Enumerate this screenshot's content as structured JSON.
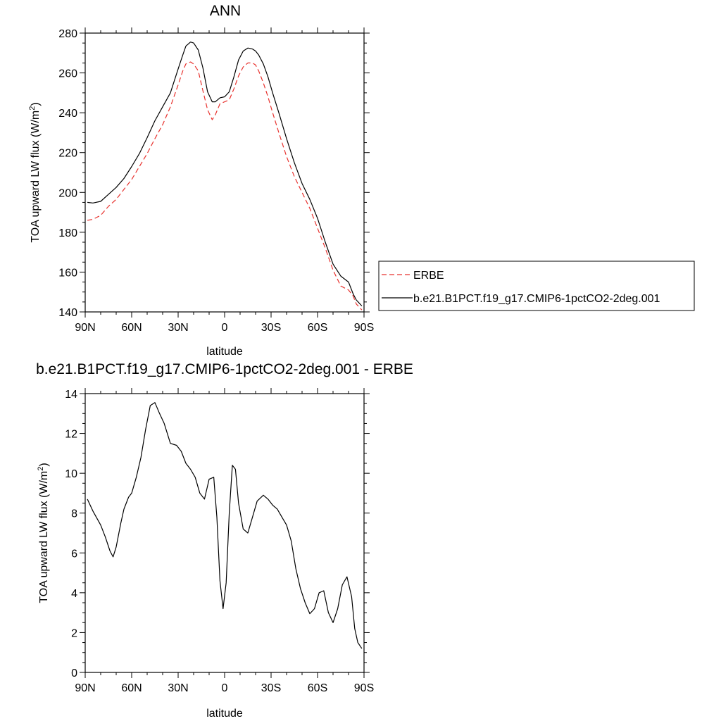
{
  "chart_data": [
    {
      "type": "line",
      "title": "ANN",
      "xlabel": "latitude",
      "ylabel": "TOA upward LW flux (W/m",
      "ylabel_sup": "2",
      "ylabel_close": ")",
      "xlim": [
        90,
        -90
      ],
      "ylim": [
        140,
        280
      ],
      "xticks": [
        90,
        60,
        30,
        0,
        -30,
        -60,
        -90
      ],
      "xtick_labels": [
        "90N",
        "60N",
        "30N",
        "0",
        "30S",
        "60S",
        "90S"
      ],
      "yticks": [
        140,
        160,
        180,
        200,
        220,
        240,
        260,
        280
      ],
      "ytick_labels": [
        "140",
        "160",
        "180",
        "200",
        "220",
        "240",
        "260",
        "280"
      ],
      "legend": [
        "ERBE",
        "b.e21.B1PCT.f19_g17.CMIP6-1pctCO2-2deg.001"
      ],
      "series": [
        {
          "name": "ERBE",
          "color": "#e8322e",
          "dash": true,
          "x": [
            88.6,
            85,
            80,
            75,
            70,
            65,
            60,
            55,
            50,
            45,
            40,
            35,
            30,
            27,
            25,
            22,
            20,
            17,
            14,
            11,
            8,
            6,
            3,
            0,
            -3,
            -6,
            -9,
            -12,
            -15,
            -18,
            -20,
            -22,
            -25,
            -28,
            -31,
            -35,
            -40,
            -45,
            -50,
            -55,
            -60,
            -65,
            -70,
            -75,
            -80,
            -83,
            -85,
            -88.6
          ],
          "values": [
            186,
            186.5,
            188.5,
            193,
            196.5,
            201.5,
            206.5,
            213,
            219.5,
            227,
            234,
            243,
            254,
            261,
            264.5,
            265.5,
            264.5,
            261,
            251,
            241.5,
            236.5,
            239,
            244.5,
            245.5,
            246.5,
            252,
            258.5,
            263,
            265,
            265,
            264,
            261,
            255,
            248,
            240,
            230,
            218,
            208,
            200,
            192,
            182,
            172,
            161,
            153,
            151,
            148,
            144,
            141
          ]
        },
        {
          "name": "b.e21.B1PCT.f19_g17.CMIP6-1pctCO2-2deg.001",
          "color": "#000000",
          "dash": false,
          "x": [
            88.6,
            85,
            80,
            75,
            70,
            65,
            60,
            55,
            50,
            45,
            40,
            35,
            30,
            27,
            25,
            22,
            20,
            17,
            14,
            11,
            8,
            6,
            3,
            0,
            -3,
            -6,
            -9,
            -12,
            -15,
            -18,
            -20,
            -22,
            -25,
            -28,
            -31,
            -35,
            -40,
            -45,
            -50,
            -55,
            -60,
            -65,
            -70,
            -75,
            -80,
            -83,
            -85,
            -88.6
          ],
          "values": [
            195,
            194.7,
            195.5,
            199,
            202.5,
            207,
            213,
            219.5,
            227.5,
            236,
            243,
            250,
            262,
            269,
            273.5,
            275.5,
            275,
            271.5,
            262.5,
            250.5,
            245.5,
            245.5,
            247.5,
            248,
            250.5,
            258,
            266.5,
            271,
            272.5,
            272,
            271,
            269,
            264.5,
            258,
            250,
            240,
            227,
            215,
            204.5,
            196.5,
            187,
            175,
            164,
            158,
            155,
            149,
            146,
            143
          ]
        }
      ]
    },
    {
      "type": "line",
      "title": "b.e21.B1PCT.f19_g17.CMIP6-1pctCO2-2deg.001 - ERBE",
      "xlabel": "latitude",
      "ylabel": "TOA upward LW flux (W/m",
      "ylabel_sup": "2",
      "ylabel_close": ")",
      "xlim": [
        90,
        -90
      ],
      "ylim": [
        0,
        14
      ],
      "xticks": [
        90,
        60,
        30,
        0,
        -30,
        -60,
        -90
      ],
      "xtick_labels": [
        "90N",
        "60N",
        "30N",
        "0",
        "30S",
        "60S",
        "90S"
      ],
      "yticks": [
        0,
        2,
        4,
        6,
        8,
        10,
        12,
        14
      ],
      "ytick_labels": [
        "0",
        "2",
        "4",
        "6",
        "8",
        "10",
        "12",
        "14"
      ],
      "series": [
        {
          "name": "b.e21.B1PCT.f19_g17.CMIP6-1pctCO2-2deg.001 - ERBE",
          "color": "#000000",
          "dash": false,
          "x": [
            88.6,
            85,
            80,
            77,
            74,
            72,
            70,
            67,
            65,
            62,
            60,
            57,
            54,
            51,
            48,
            45,
            42,
            39,
            35,
            31,
            28,
            25,
            22,
            19,
            16,
            13,
            10,
            7,
            5,
            3,
            1,
            -1,
            -3,
            -5,
            -7,
            -9,
            -12,
            -15,
            -18,
            -21,
            -25,
            -28,
            -31,
            -34,
            -37,
            -40,
            -43,
            -46,
            -49,
            -52,
            -55,
            -58,
            -61,
            -64,
            -67,
            -70,
            -73,
            -76,
            -79,
            -82,
            -84,
            -86,
            -88.6
          ],
          "values": [
            8.7,
            8.1,
            7.4,
            6.8,
            6.1,
            5.8,
            6.3,
            7.5,
            8.2,
            8.8,
            9,
            9.8,
            10.8,
            12.2,
            13.4,
            13.55,
            13,
            12.5,
            11.5,
            11.4,
            11.1,
            10.5,
            10.2,
            9.8,
            9,
            8.7,
            9.7,
            9.8,
            7.8,
            4.6,
            3.2,
            4.5,
            8,
            10.4,
            10.2,
            8.5,
            7.2,
            7,
            7.8,
            8.6,
            8.9,
            8.7,
            8.4,
            8.2,
            7.8,
            7.4,
            6.6,
            5.2,
            4.2,
            3.5,
            2.95,
            3.2,
            4,
            4.1,
            3,
            2.5,
            3.2,
            4.4,
            4.8,
            3.8,
            2.2,
            1.5,
            1.2
          ]
        }
      ]
    }
  ]
}
